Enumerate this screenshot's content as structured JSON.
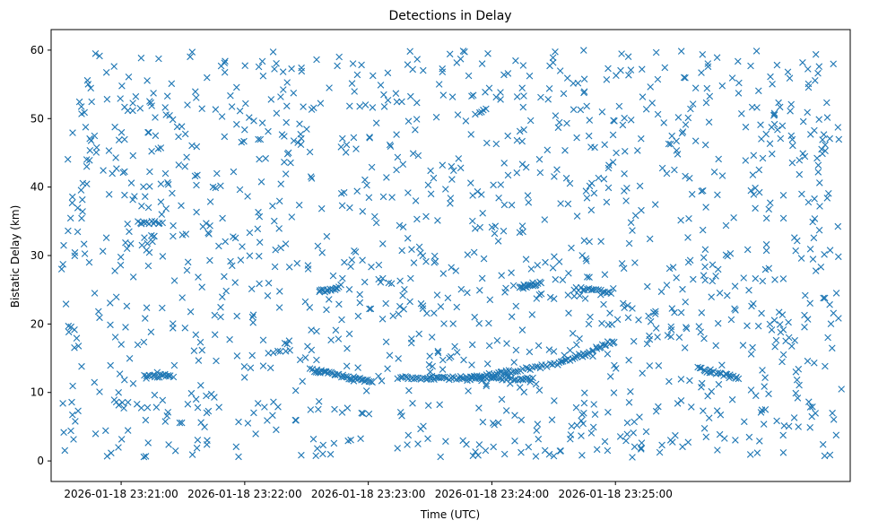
{
  "chart_data": {
    "type": "scatter",
    "title": "Detections in Delay",
    "xlabel": "Time (UTC)",
    "ylabel": "Bistatic Delay (km)",
    "xlim_seconds": [
      -34,
      354
    ],
    "x_ticks": [
      {
        "t": 0,
        "label": "2026-01-18 23:21:00"
      },
      {
        "t": 60,
        "label": "2026-01-18 23:22:00"
      },
      {
        "t": 120,
        "label": "2026-01-18 23:23:00"
      },
      {
        "t": 180,
        "label": "2026-01-18 23:24:00"
      },
      {
        "t": 240,
        "label": "2026-01-18 23:25:00"
      }
    ],
    "ylim": [
      -3,
      63
    ],
    "y_ticks": [
      0,
      10,
      20,
      30,
      40,
      50,
      60
    ],
    "marker": "x",
    "color": "#1f77b4",
    "grid": false,
    "series": [
      {
        "x_seconds": [
          -30,
          -30,
          -29,
          -29,
          -28,
          -27,
          -27,
          -26,
          -25,
          -25,
          -24,
          -23,
          -23,
          -22,
          -21,
          -20,
          -20,
          -19,
          -18,
          -18,
          -17,
          -16,
          -16,
          -15,
          -14,
          -14,
          -13,
          -12,
          -12,
          -11,
          -10,
          -9,
          -9,
          -8,
          -7,
          -6,
          -5,
          -4,
          -3,
          -3,
          -2,
          -1,
          0,
          1,
          2,
          3,
          4,
          5,
          6,
          7,
          8,
          9,
          10,
          11,
          12,
          13,
          14,
          15,
          16,
          17,
          18,
          19,
          20,
          21,
          22,
          23,
          24,
          25,
          26,
          27,
          28,
          29,
          30,
          31,
          32,
          33,
          34,
          35,
          36,
          37,
          38,
          39,
          40,
          41,
          42,
          43,
          44,
          45,
          46,
          47,
          48,
          49,
          50,
          51,
          52,
          53,
          54,
          55,
          56,
          57,
          58,
          59,
          60,
          61,
          62,
          63,
          64,
          65,
          66,
          67,
          68,
          69,
          70,
          71,
          72,
          73,
          74,
          75,
          76,
          77,
          78,
          79,
          80,
          81,
          82,
          83,
          84,
          85,
          86,
          87,
          88,
          89,
          90,
          91,
          92,
          93,
          94,
          95,
          96,
          97,
          98,
          99,
          100,
          101,
          102,
          103,
          104,
          105,
          106,
          107,
          108,
          109,
          110,
          111,
          112,
          113,
          114,
          115,
          116,
          117,
          118,
          119,
          120,
          121,
          122,
          123,
          124,
          125,
          126,
          127,
          128,
          129,
          130,
          131,
          132,
          133,
          134,
          135,
          136,
          137,
          138,
          139,
          140,
          141,
          142,
          143,
          144,
          145,
          146,
          147,
          148,
          149,
          150,
          151,
          152,
          153,
          154,
          155,
          156,
          157,
          158,
          159,
          160,
          161,
          162,
          163,
          164,
          165,
          166,
          167,
          168,
          169,
          170,
          171,
          172,
          173,
          174,
          175,
          176,
          177,
          178,
          179,
          180,
          181,
          182,
          183,
          184,
          185,
          186,
          187,
          188,
          189,
          190,
          191,
          192,
          193,
          194,
          195,
          196,
          197,
          198,
          199,
          200,
          201,
          202,
          203,
          204,
          205,
          206,
          207,
          208,
          209,
          210,
          211,
          212,
          213,
          214,
          215,
          216,
          217,
          218,
          219,
          220,
          221,
          222,
          223,
          224,
          225,
          226,
          227,
          228,
          229,
          230,
          231,
          232,
          233,
          234,
          235,
          236,
          237,
          238,
          239,
          240,
          241,
          242,
          243,
          244,
          245,
          246,
          247,
          248,
          249,
          250,
          251,
          252,
          253,
          254,
          255,
          256,
          257,
          258,
          259,
          260,
          261,
          262,
          263,
          264,
          265,
          266,
          267,
          268,
          269,
          270,
          271,
          272,
          273,
          274,
          275,
          276,
          277,
          278,
          279,
          280,
          281,
          282,
          283,
          284,
          285,
          286,
          287,
          288,
          289,
          290,
          291,
          292,
          293,
          294,
          295,
          296,
          297,
          298,
          299,
          300,
          301,
          302,
          303,
          304,
          305,
          306,
          307,
          308,
          309,
          310,
          311,
          312,
          313,
          314,
          315,
          316,
          317,
          318,
          319,
          320,
          321,
          322,
          323,
          324,
          325,
          326,
          327,
          328,
          329,
          330,
          331,
          332,
          333,
          334,
          335,
          336,
          337,
          338,
          339,
          340,
          341,
          342,
          343,
          344,
          345,
          346,
          347,
          348,
          349,
          350
        ],
        "note": "see tracks"
      }
    ],
    "tracks": [
      {
        "t0": 11,
        "t1": 25,
        "y0": 12.3,
        "y1": 12.5,
        "n": 18
      },
      {
        "t0": 92,
        "t1": 122,
        "y0": 13.3,
        "y1": 11.5,
        "n": 40
      },
      {
        "t0": 136,
        "t1": 200,
        "y0": 12.2,
        "y1": 12.0,
        "n": 70
      },
      {
        "t0": 168,
        "t1": 214,
        "y0": 12.0,
        "y1": 14.3,
        "n": 40
      },
      {
        "t0": 214,
        "t1": 239,
        "y0": 14.3,
        "y1": 17.5,
        "n": 30
      },
      {
        "t0": 280,
        "t1": 300,
        "y0": 13.5,
        "y1": 12.0,
        "n": 22
      },
      {
        "t0": 96,
        "t1": 106,
        "y0": 24.7,
        "y1": 25.2,
        "n": 14
      },
      {
        "t0": 194,
        "t1": 204,
        "y0": 25.5,
        "y1": 26.0,
        "n": 14
      },
      {
        "t0": 220,
        "t1": 238,
        "y0": 25.2,
        "y1": 24.6,
        "n": 18
      },
      {
        "t0": 8,
        "t1": 20,
        "y0": 34.8,
        "y1": 34.8,
        "n": 12
      }
    ],
    "random_points": {
      "count": 1350,
      "x_range": [
        -29,
        350
      ],
      "y_range": [
        0.5,
        60
      ]
    }
  }
}
